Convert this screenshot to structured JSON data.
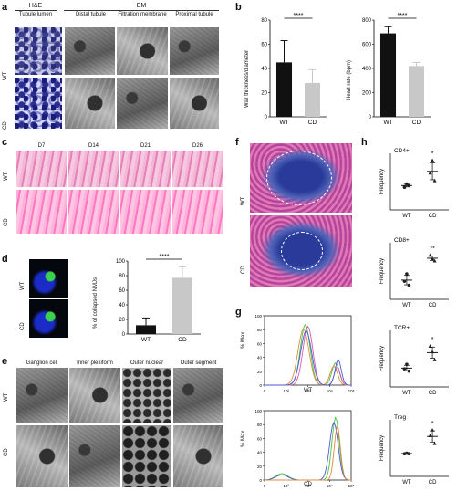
{
  "panels": {
    "a": {
      "label": "a",
      "group_he": "H&E",
      "group_em": "EM",
      "cols": [
        "Tubule lumen",
        "Distal tubule",
        "Filtration membrane",
        "Proximal tubule"
      ],
      "rows": [
        "WT",
        "CD"
      ]
    },
    "b": {
      "label": "b",
      "significance": "****",
      "left": {
        "ylabel": "Wall thickness/diameter",
        "yticks": [
          "0",
          "20",
          "40",
          "60",
          "80"
        ]
      },
      "right": {
        "ylabel": "Heart rate (bpm)",
        "yticks": [
          "0",
          "200",
          "400",
          "600",
          "800"
        ]
      }
    },
    "c": {
      "label": "c",
      "cols": [
        "D7",
        "D14",
        "D21",
        "D26"
      ],
      "rows": [
        "WT",
        "CD"
      ]
    },
    "d": {
      "label": "d",
      "rows": [
        "WT",
        "CD"
      ],
      "ylabel": "% of collapsed NMJs",
      "yticks": [
        "0",
        "20",
        "40",
        "60",
        "80",
        "100"
      ],
      "significance": "****"
    },
    "e": {
      "label": "e",
      "cols": [
        "Ganglion cell",
        "Inner plexiform",
        "Outer nuclear",
        "Outer segment"
      ],
      "rows": [
        "WT",
        "CD"
      ]
    },
    "f": {
      "label": "f",
      "rows": [
        "WT",
        "CD"
      ]
    },
    "g": {
      "label": "g",
      "ylabel": "% Max",
      "yticks": [
        "0",
        "20",
        "40",
        "60",
        "80",
        "100"
      ],
      "xticks": [
        "0",
        "10²",
        "10³",
        "10⁴",
        "10⁵"
      ],
      "xlabel_top": "WT",
      "xlabel_bottom": "CD"
    },
    "h": {
      "label": "h",
      "ylabel": "Frequency",
      "plots": [
        {
          "title": "CD4+",
          "sig": "*"
        },
        {
          "title": "CD8+",
          "sig": "**"
        },
        {
          "title": "TCR+",
          "sig": "*"
        },
        {
          "title": "Treg",
          "sig": "*"
        }
      ]
    }
  },
  "colors": {
    "wt_bar": "#111111",
    "cd_bar": "#c8c8c8",
    "hist_green": "#48c43e",
    "hist_blue": "#4a5ad8",
    "hist_orange": "#e08a3a",
    "hist_pink": "#d85ab0"
  },
  "chart_data": [
    {
      "type": "bar",
      "panel": "b-left",
      "categories": [
        "WT",
        "CD"
      ],
      "values": [
        45,
        28
      ],
      "errors": [
        18,
        11
      ],
      "ylabel": "Wall thickness/diameter",
      "ylim": [
        0,
        80
      ]
    },
    {
      "type": "bar",
      "panel": "b-right",
      "categories": [
        "WT",
        "CD"
      ],
      "values": [
        690,
        420
      ],
      "errors": [
        55,
        30
      ],
      "ylabel": "Heart rate (bpm)",
      "ylim": [
        0,
        800
      ]
    },
    {
      "type": "bar",
      "panel": "d",
      "categories": [
        "WT",
        "CD"
      ],
      "values": [
        12,
        77
      ],
      "errors": [
        10,
        15
      ],
      "ylabel": "% of collapsed NMJs",
      "ylim": [
        0,
        100
      ]
    },
    {
      "type": "scatter",
      "panel": "h",
      "categories": [
        "WT",
        "CD"
      ],
      "series": [
        {
          "title": "CD4+",
          "WT": [
            0.48,
            0.55,
            0.52
          ],
          "CD": [
            0.78,
            1.05,
            0.62
          ],
          "ylim": [
            0,
            1.2
          ]
        },
        {
          "title": "CD8+",
          "WT": [
            0.32,
            0.45,
            0.25
          ],
          "CD": [
            0.78,
            0.72,
            0.68
          ],
          "ylim": [
            0,
            1.0
          ]
        },
        {
          "title": "TCR+",
          "WT": [
            0.32,
            0.4,
            0.28
          ],
          "CD": [
            0.72,
            0.62,
            0.48
          ],
          "ylim": [
            0,
            1.0
          ]
        },
        {
          "title": "Treg",
          "WT": [
            0.4,
            0.41,
            0.4
          ],
          "CD": [
            0.72,
            0.82,
            0.58
          ],
          "ylim": [
            0,
            1.0
          ]
        }
      ],
      "ylabel": "Frequency"
    }
  ]
}
